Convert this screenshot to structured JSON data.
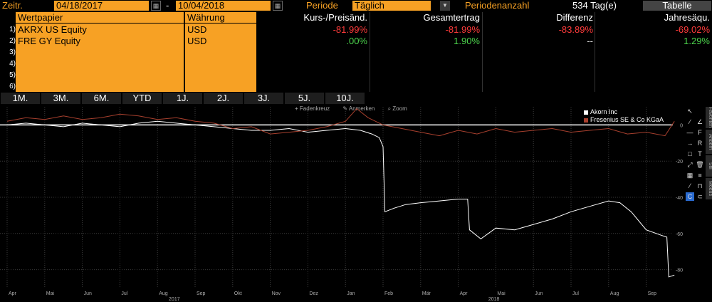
{
  "header": {
    "zeitr_label": "Zeitr.",
    "start_date": "04/18/2017",
    "date_sep": "-",
    "end_date": "10/04/2018",
    "periode_label": "Periode",
    "periode_value": "Täglich",
    "periodenanzahl_label": "Periodenanzahl",
    "periodenanzahl_value": "534 Tag(e)",
    "tabelle_button": "Tabelle"
  },
  "table": {
    "columns": [
      "Wertpapier",
      "Währung",
      "Kurs-/Preisänd.",
      "Gesamtertrag",
      "Differenz",
      "Jahresäqu."
    ],
    "rows": [
      {
        "num": "1)",
        "security": "AKRX US Equity",
        "currency": "USD",
        "price_change": "-81.99%",
        "total_return": "-81.99%",
        "difference": "-83.89%",
        "annualized": "-69.02%"
      },
      {
        "num": "2)",
        "security": "FRE GY Equity",
        "currency": "USD",
        "price_change": ".00%",
        "total_return": "1.90%",
        "difference": "--",
        "annualized": "1.29%"
      },
      {
        "num": "3)",
        "security": "",
        "currency": ""
      },
      {
        "num": "4)",
        "security": "",
        "currency": ""
      },
      {
        "num": "5)",
        "security": "",
        "currency": ""
      },
      {
        "num": "6)",
        "security": "",
        "currency": ""
      }
    ],
    "colors": {
      "negative": "#ff3b3b",
      "positive": "#4cd44c",
      "neutral": "#d9d9d9"
    }
  },
  "periods": [
    "1M.",
    "3M.",
    "6M.",
    "YTD",
    "1J.",
    "2J.",
    "3J.",
    "5J.",
    "10J."
  ],
  "chart_toolbar": {
    "crosshair": "Fadenkreuz",
    "annotate": "Anmerken",
    "zoom": "Zoom"
  },
  "side_tabs": {
    "favoriten": "Favoriten",
    "andern": "Ändern",
    "stil": "Stil",
    "modus": "Modus"
  },
  "chart_data": {
    "type": "line",
    "legend_position": "top-right",
    "ylim": [
      -90,
      10
    ],
    "y_ticks": [
      "0",
      "-20",
      "-40",
      "-60",
      "-80"
    ],
    "x_ticks": [
      "Apr",
      "Mai",
      "Jun",
      "Jul",
      "Aug",
      "Sep",
      "Okt",
      "Nov",
      "Dez",
      "Jan",
      "Feb",
      "Mär",
      "Apr",
      "Mai",
      "Jun",
      "Jul",
      "Aug",
      "Sep"
    ],
    "year_labels": [
      "2017",
      "2018"
    ],
    "series": [
      {
        "name": "Akorn Inc",
        "color": "#ffffff",
        "x": [
          0,
          0.5,
          1,
          1.5,
          2,
          2.5,
          3,
          3.5,
          4,
          4.5,
          5,
          5.5,
          6,
          6.5,
          7,
          7.5,
          8,
          8.5,
          9,
          9.4,
          9.7,
          9.9,
          10.0,
          10.05,
          10.3,
          10.6,
          11,
          11.5,
          12,
          12.25,
          12.3,
          12.6,
          13,
          13.5,
          14,
          14.5,
          15,
          15.5,
          16,
          16.3,
          16.6,
          17,
          17.4,
          17.55,
          17.6,
          17.75
        ],
        "y": [
          0,
          1,
          0,
          -1,
          1,
          0,
          -1,
          1,
          2,
          1,
          0,
          -1,
          -2,
          -3,
          -3,
          -2,
          -4,
          -3,
          -2,
          -3,
          -5,
          -7,
          -12,
          -48,
          -46,
          -44,
          -43,
          -42,
          -41,
          -41,
          -58,
          -63,
          -57,
          -58,
          -55,
          -52,
          -48,
          -45,
          -42,
          -43,
          -48,
          -58,
          -61,
          -62,
          -84,
          -83
        ]
      },
      {
        "name": "Fresenius SE & Co KGaA",
        "color": "#a8402e",
        "x": [
          0,
          0.5,
          1,
          1.5,
          2,
          2.5,
          3,
          3.5,
          4,
          4.5,
          5,
          5.5,
          6,
          6.5,
          7,
          7.5,
          8,
          8.5,
          9,
          9.3,
          9.6,
          10,
          10.5,
          11,
          11.5,
          12,
          12.5,
          13,
          13.5,
          14,
          14.5,
          15,
          15.5,
          16,
          16.5,
          17,
          17.5,
          17.75
        ],
        "y": [
          2,
          4,
          3,
          5,
          3,
          4,
          6,
          5,
          3,
          4,
          2,
          1,
          -2,
          -1,
          -5,
          -4,
          -3,
          -1,
          2,
          9,
          4,
          0,
          -2,
          -4,
          -6,
          -3,
          -5,
          -2,
          -4,
          -3,
          -2,
          -4,
          -3,
          -2,
          -5,
          -4,
          -6,
          2
        ]
      }
    ]
  }
}
